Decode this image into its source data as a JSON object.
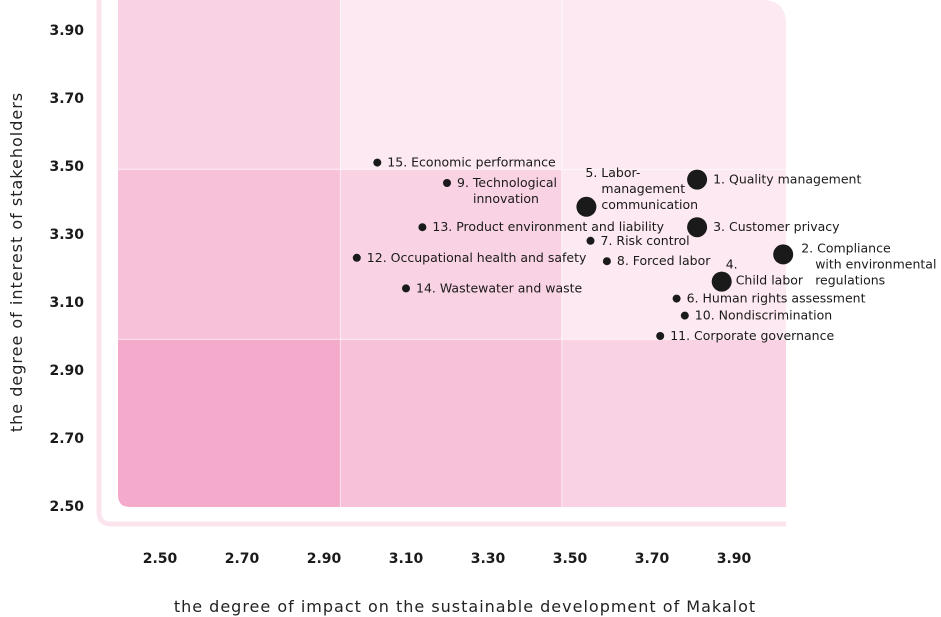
{
  "chart_data": {
    "type": "scatter",
    "title": "",
    "xlabel": "the degree of impact on the sustainable development of Makalot",
    "ylabel": "the degree of interest of stakeholders",
    "xlim": [
      2.4,
      4.03
    ],
    "ylim": [
      2.48,
      4.0
    ],
    "x_ticks": [
      "2.50",
      "2.70",
      "2.90",
      "3.10",
      "3.30",
      "3.50",
      "3.70",
      "3.90"
    ],
    "y_ticks": [
      "3.90",
      "3.70",
      "3.50",
      "3.30",
      "3.10",
      "2.90",
      "2.70",
      "2.50"
    ],
    "x_tick_values": [
      2.5,
      2.7,
      2.9,
      3.1,
      3.3,
      3.5,
      3.7,
      3.9
    ],
    "y_tick_values": [
      3.9,
      3.7,
      3.5,
      3.3,
      3.1,
      2.9,
      2.7,
      2.5
    ],
    "grid_x_bounds": [
      2.94,
      3.48
    ],
    "grid_y_bounds": [
      3.49,
      2.99
    ],
    "zone_colors": [
      [
        "#f9d3e4",
        "#fde9f1",
        "#fde9f1"
      ],
      [
        "#f6c1d9",
        "#f9d3e4",
        "#fde9f1"
      ],
      [
        "#f4abcb",
        "#f6c1d9",
        "#f9d3e4"
      ]
    ],
    "point_color": "#1a1a1a",
    "points": [
      {
        "label": [
          "1. Quality management"
        ],
        "x": 3.81,
        "y": 3.46,
        "size": "large",
        "label_pos": "right"
      },
      {
        "label": [
          "2. Compliance",
          "with environmental",
          "regulations"
        ],
        "x": 4.02,
        "y": 3.24,
        "size": "large",
        "label_pos": "right"
      },
      {
        "label": [
          "3. Customer privacy"
        ],
        "x": 3.81,
        "y": 3.32,
        "size": "large",
        "label_pos": "right"
      },
      {
        "label": [
          "4.",
          "Child labor"
        ],
        "x": 3.87,
        "y": 3.16,
        "size": "large",
        "label_pos": "right-stack"
      },
      {
        "label": [
          "5. Labor-",
          "management",
          "communication"
        ],
        "x": 3.54,
        "y": 3.38,
        "size": "large",
        "label_pos": "top-right"
      },
      {
        "label": [
          "6. Human rights assessment"
        ],
        "x": 3.76,
        "y": 3.11,
        "size": "small",
        "label_pos": "right"
      },
      {
        "label": [
          "7. Risk control"
        ],
        "x": 3.55,
        "y": 3.28,
        "size": "small",
        "label_pos": "right"
      },
      {
        "label": [
          "8. Forced labor"
        ],
        "x": 3.59,
        "y": 3.22,
        "size": "small",
        "label_pos": "right"
      },
      {
        "label": [
          "9. Technological",
          "innovation"
        ],
        "x": 3.2,
        "y": 3.45,
        "size": "small",
        "label_pos": "right-wrap"
      },
      {
        "label": [
          "10. Nondiscrimination"
        ],
        "x": 3.78,
        "y": 3.06,
        "size": "small",
        "label_pos": "right"
      },
      {
        "label": [
          "11. Corporate governance"
        ],
        "x": 3.72,
        "y": 3.0,
        "size": "small",
        "label_pos": "right"
      },
      {
        "label": [
          "12. Occupational health and safety"
        ],
        "x": 2.98,
        "y": 3.23,
        "size": "small",
        "label_pos": "right"
      },
      {
        "label": [
          "13. Product environment and liability"
        ],
        "x": 3.14,
        "y": 3.32,
        "size": "small",
        "label_pos": "right"
      },
      {
        "label": [
          "14. Wastewater and waste"
        ],
        "x": 3.1,
        "y": 3.14,
        "size": "small",
        "label_pos": "right"
      },
      {
        "label": [
          "15. Economic performance"
        ],
        "x": 3.03,
        "y": 3.51,
        "size": "small",
        "label_pos": "right"
      }
    ]
  }
}
